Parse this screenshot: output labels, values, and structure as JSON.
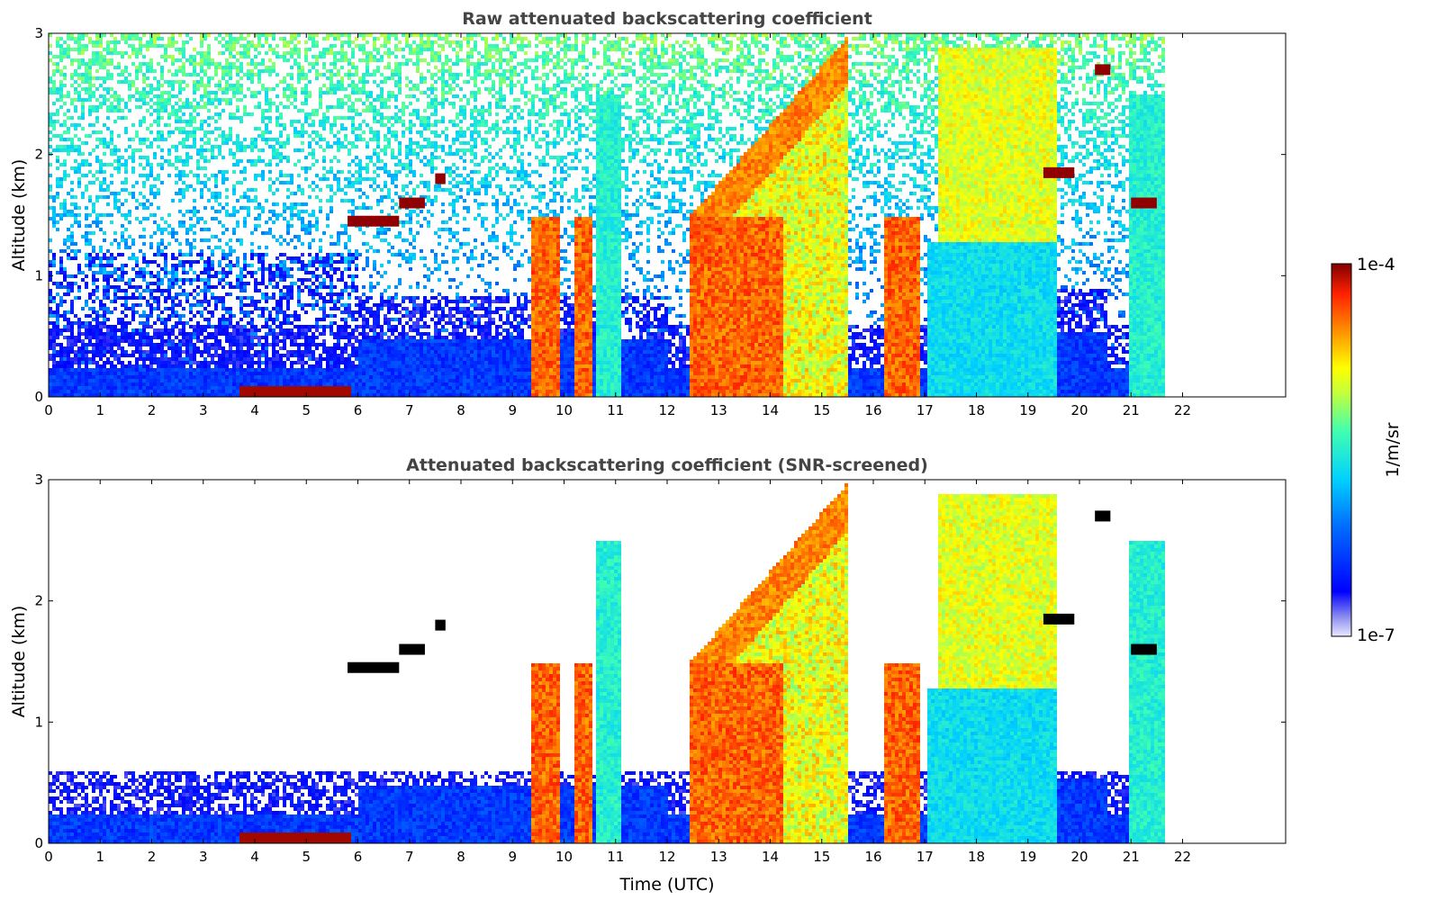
{
  "chart_data": [
    {
      "type": "heatmap",
      "title": "Raw attenuated backscattering coefficient",
      "ylabel": "Altitude (km)",
      "xlabel": "",
      "xlim": [
        0,
        24
      ],
      "ylim": [
        0,
        3
      ],
      "x_ticks": [
        "0",
        "1",
        "2",
        "3",
        "4",
        "5",
        "6",
        "7",
        "8",
        "9",
        "10",
        "11",
        "12",
        "13",
        "14",
        "15",
        "16",
        "17",
        "18",
        "19",
        "20",
        "21",
        "22"
      ],
      "y_ticks": [
        "0",
        "1",
        "2",
        "3"
      ],
      "data_extent_hours": 21.6,
      "screened": false
    },
    {
      "type": "heatmap",
      "title": "Attenuated backscattering coefficient (SNR-screened)",
      "ylabel": "Altitude (km)",
      "xlabel": "Time (UTC)",
      "xlim": [
        0,
        24
      ],
      "ylim": [
        0,
        3
      ],
      "x_ticks": [
        "0",
        "1",
        "2",
        "3",
        "4",
        "5",
        "6",
        "7",
        "8",
        "9",
        "10",
        "11",
        "12",
        "13",
        "14",
        "15",
        "16",
        "17",
        "18",
        "19",
        "20",
        "21",
        "22"
      ],
      "y_ticks": [
        "0",
        "1",
        "2",
        "3"
      ],
      "data_extent_hours": 21.6,
      "screened": true
    }
  ],
  "colorbar": {
    "label": "1/m/sr",
    "max_label": "1e-4",
    "min_label": "1e-7",
    "scale": "log",
    "colormap": "jet"
  },
  "features": {
    "boundary_layer_top_km": 0.25,
    "dense_surface_layer_hours": [
      3.7,
      5.8
    ],
    "precip_columns_hours": [
      [
        9.3,
        9.9
      ],
      [
        10.2,
        10.5
      ],
      [
        12.4,
        14.2
      ],
      [
        16.2,
        16.9
      ]
    ],
    "rising_layer": {
      "start_hour": 12.4,
      "start_km": 1.5,
      "end_hour": 15.5,
      "end_km": 3.0
    },
    "cloud_base_segments": [
      {
        "h0": 5.8,
        "h1": 6.8,
        "km": 1.45
      },
      {
        "h0": 6.8,
        "h1": 7.3,
        "km": 1.6
      },
      {
        "h0": 7.5,
        "h1": 7.7,
        "km": 1.8
      },
      {
        "h0": 19.3,
        "h1": 19.9,
        "km": 1.85
      },
      {
        "h0": 20.3,
        "h1": 20.6,
        "km": 2.7
      },
      {
        "h0": 21.0,
        "h1": 21.5,
        "km": 1.6
      }
    ]
  }
}
